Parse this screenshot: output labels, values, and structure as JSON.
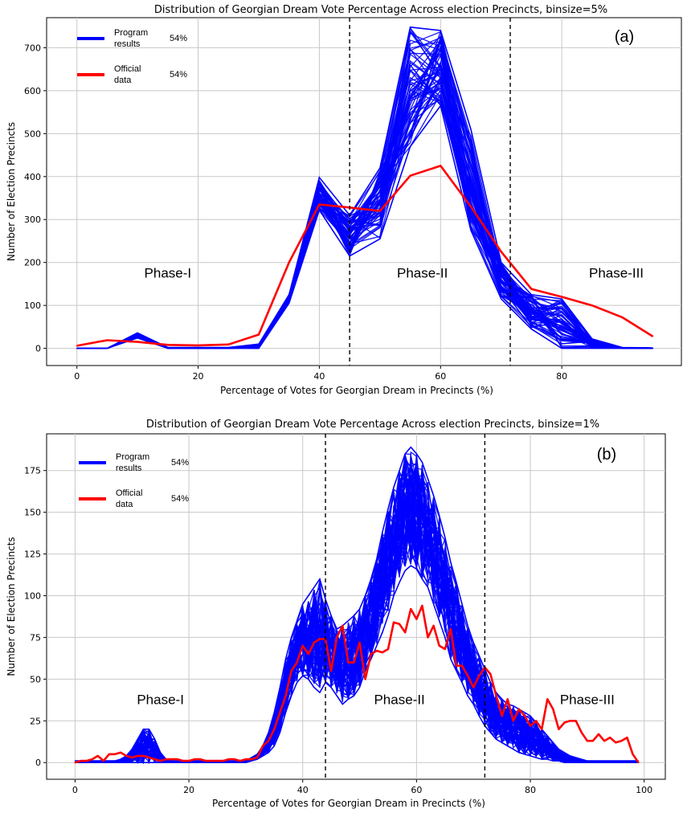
{
  "chart_data": [
    {
      "panel_label": "(a)",
      "type": "line",
      "title": "Distribution of Georgian Dream Vote Percentage Across election Precincts, binsize=5%",
      "xlabel": "Percentage of Votes for Georgian Dream in Precincts (%)",
      "ylabel": "Number of Election Precincts",
      "xlim": [
        -5,
        100
      ],
      "ylim": [
        -40,
        770
      ],
      "xticks": [
        "0",
        "20",
        "40",
        "60",
        "80"
      ],
      "yticks": [
        "0",
        "100",
        "200",
        "300",
        "400",
        "500",
        "600",
        "700"
      ],
      "grid": true,
      "legend_position": "top-left",
      "legend": [
        {
          "name": "Program results",
          "value": "54%",
          "color": "#0000ff"
        },
        {
          "name": "Official data",
          "value": "54%",
          "color": "#ff0000"
        }
      ],
      "phase_labels": [
        {
          "text": "Phase-I",
          "x": 15,
          "y": 165
        },
        {
          "text": "Phase-II",
          "x": 57,
          "y": 165
        },
        {
          "text": "Phase-III",
          "x": 89,
          "y": 165
        }
      ],
      "phase_boundaries": [
        45,
        71.5
      ],
      "x": [
        0,
        5,
        10,
        15,
        20,
        25,
        30,
        35,
        40,
        45,
        50,
        55,
        60,
        65,
        70,
        75,
        80,
        85,
        90,
        95
      ],
      "series": [
        {
          "name": "Program results",
          "color": "#0000ff",
          "envelope_low": [
            0,
            0,
            24,
            0,
            0,
            0,
            0,
            105,
            322,
            215,
            255,
            470,
            565,
            275,
            115,
            45,
            0,
            0,
            0,
            0
          ],
          "envelope_high": [
            0,
            0,
            36,
            2,
            2,
            2,
            10,
            125,
            398,
            310,
            420,
            748,
            740,
            510,
            200,
            125,
            115,
            22,
            2,
            1
          ],
          "values": [
            0,
            0,
            30,
            0,
            0,
            0,
            3,
            112,
            360,
            255,
            340,
            600,
            650,
            390,
            160,
            90,
            45,
            8,
            1,
            0
          ]
        },
        {
          "name": "Official data",
          "color": "#ff0000",
          "values": [
            6,
            19,
            15,
            8,
            7,
            9,
            32,
            200,
            335,
            328,
            320,
            402,
            425,
            330,
            225,
            138,
            120,
            100,
            72,
            28
          ]
        }
      ]
    },
    {
      "panel_label": "(b)",
      "type": "line",
      "title": "Distribution of Georgian Dream Vote Percentage Across election Precincts, binsize=1%",
      "xlabel": "Percentage of Votes for Georgian Dream in Precincts (%)",
      "ylabel": "Number of Election Precincts",
      "xlim": [
        -5,
        104
      ],
      "ylim": [
        -10,
        197
      ],
      "xticks": [
        "0",
        "20",
        "40",
        "60",
        "80",
        "100"
      ],
      "yticks": [
        "0",
        "25",
        "50",
        "75",
        "100",
        "125",
        "150",
        "175"
      ],
      "grid": true,
      "legend_position": "top-left",
      "legend": [
        {
          "name": "Program results",
          "value": "54%",
          "color": "#0000ff"
        },
        {
          "name": "Official data",
          "value": "54%",
          "color": "#ff0000"
        }
      ],
      "phase_labels": [
        {
          "text": "Phase-I",
          "x": 15,
          "y": 35
        },
        {
          "text": "Phase-II",
          "x": 57,
          "y": 35
        },
        {
          "text": "Phase-III",
          "x": 90,
          "y": 35
        }
      ],
      "phase_boundaries": [
        44,
        72
      ],
      "x": [
        0,
        1,
        2,
        3,
        4,
        5,
        6,
        7,
        8,
        9,
        10,
        11,
        12,
        13,
        14,
        15,
        16,
        17,
        18,
        19,
        20,
        21,
        22,
        23,
        24,
        25,
        26,
        27,
        28,
        29,
        30,
        31,
        32,
        33,
        34,
        35,
        36,
        37,
        38,
        39,
        40,
        41,
        42,
        43,
        44,
        45,
        46,
        47,
        48,
        49,
        50,
        51,
        52,
        53,
        54,
        55,
        56,
        57,
        58,
        59,
        60,
        61,
        62,
        63,
        64,
        65,
        66,
        67,
        68,
        69,
        70,
        71,
        72,
        73,
        74,
        75,
        76,
        77,
        78,
        79,
        80,
        81,
        82,
        83,
        84,
        85,
        86,
        87,
        88,
        89,
        90,
        91,
        92,
        93,
        94,
        95,
        96,
        97,
        98,
        99
      ],
      "series": [
        {
          "name": "Program results",
          "color": "#0000ff",
          "envelope_low": [
            0,
            0,
            0,
            0,
            0,
            0,
            0,
            0,
            0,
            0,
            0,
            0,
            0,
            0,
            0,
            0,
            0,
            0,
            0,
            0,
            0,
            0,
            0,
            0,
            0,
            0,
            0,
            0,
            0,
            0,
            0,
            1,
            2,
            4,
            6,
            10,
            18,
            30,
            40,
            48,
            52,
            50,
            45,
            42,
            48,
            45,
            40,
            35,
            38,
            40,
            45,
            55,
            62,
            70,
            78,
            88,
            100,
            108,
            115,
            118,
            116,
            110,
            105,
            95,
            85,
            75,
            62,
            55,
            48,
            40,
            35,
            28,
            22,
            18,
            14,
            12,
            10,
            8,
            6,
            5,
            4,
            3,
            2,
            2,
            1,
            1,
            0,
            0,
            0,
            0,
            0,
            0,
            0,
            0,
            0,
            0,
            0,
            0,
            0,
            0
          ],
          "envelope_high": [
            1,
            1,
            1,
            1,
            1,
            1,
            1,
            1,
            2,
            4,
            8,
            14,
            20,
            20,
            14,
            6,
            2,
            1,
            1,
            1,
            1,
            1,
            1,
            1,
            1,
            1,
            1,
            1,
            1,
            1,
            1,
            3,
            5,
            10,
            18,
            30,
            45,
            62,
            75,
            85,
            95,
            100,
            105,
            110,
            98,
            88,
            80,
            82,
            85,
            88,
            92,
            100,
            110,
            122,
            138,
            152,
            165,
            175,
            185,
            189,
            185,
            180,
            170,
            160,
            148,
            135,
            120,
            108,
            95,
            82,
            72,
            64,
            56,
            48,
            42,
            38,
            35,
            34,
            32,
            30,
            28,
            24,
            20,
            16,
            12,
            8,
            6,
            4,
            3,
            2,
            1,
            1,
            1,
            1,
            1,
            1,
            1,
            1,
            1,
            1
          ],
          "values": [
            0,
            0,
            0,
            0,
            0,
            0,
            0,
            0,
            1,
            1,
            3,
            6,
            10,
            9,
            6,
            2,
            1,
            0,
            0,
            0,
            0,
            0,
            0,
            0,
            0,
            0,
            0,
            0,
            0,
            0,
            0,
            2,
            3,
            6,
            11,
            18,
            30,
            45,
            58,
            66,
            72,
            75,
            78,
            75,
            70,
            62,
            58,
            55,
            57,
            60,
            65,
            75,
            85,
            96,
            108,
            120,
            132,
            140,
            146,
            150,
            148,
            143,
            135,
            125,
            115,
            103,
            90,
            80,
            70,
            60,
            52,
            45,
            38,
            32,
            27,
            24,
            21,
            20,
            18,
            17,
            15,
            13,
            10,
            8,
            6,
            4,
            3,
            2,
            1,
            1,
            0,
            0,
            0,
            0,
            0,
            0,
            0,
            0,
            0,
            0
          ]
        },
        {
          "name": "Official data",
          "color": "#ff0000",
          "values": [
            0,
            1,
            1,
            2,
            4,
            1,
            5,
            5,
            6,
            4,
            3,
            4,
            4,
            3,
            2,
            1,
            2,
            2,
            2,
            1,
            1,
            2,
            2,
            1,
            1,
            1,
            1,
            2,
            2,
            1,
            2,
            2,
            3,
            10,
            13,
            20,
            30,
            40,
            55,
            60,
            70,
            65,
            72,
            74,
            74,
            55,
            75,
            82,
            60,
            60,
            72,
            50,
            65,
            67,
            66,
            68,
            84,
            83,
            78,
            92,
            86,
            94,
            75,
            82,
            70,
            68,
            80,
            58,
            58,
            52,
            45,
            52,
            57,
            53,
            40,
            28,
            38,
            25,
            32,
            28,
            22,
            25,
            20,
            38,
            32,
            20,
            24,
            25,
            25,
            18,
            13,
            13,
            17,
            13,
            15,
            12,
            13,
            15,
            5,
            0
          ]
        }
      ]
    }
  ]
}
